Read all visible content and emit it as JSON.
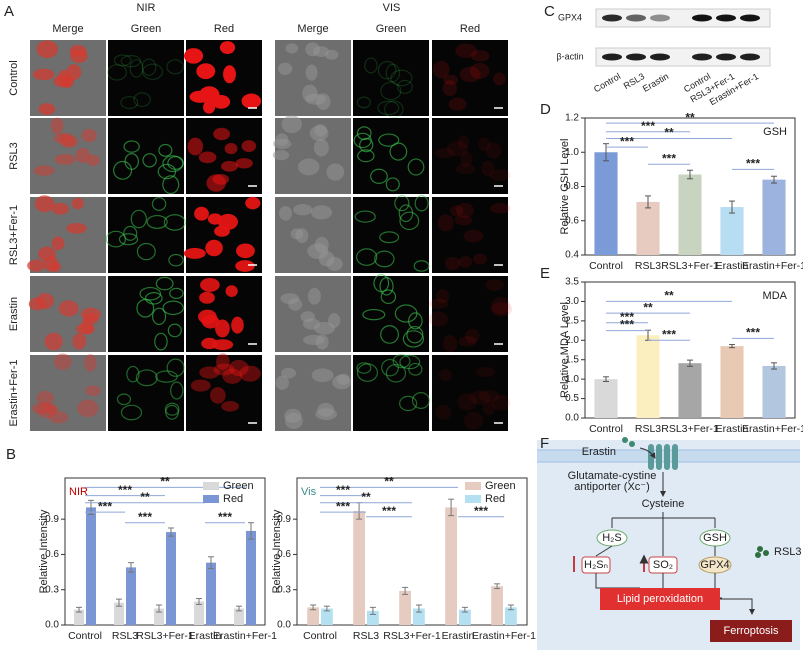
{
  "panel_a": {
    "label": "A",
    "groups": [
      "NIR",
      "VIS"
    ],
    "columns": [
      "Merge",
      "Green",
      "Red",
      "Merge",
      "Green",
      "Red"
    ],
    "rows": [
      "Control",
      "RSL3",
      "RSL3+Fer-1",
      "Erastin",
      "Erastin+Fer-1"
    ]
  },
  "panel_c": {
    "label": "C",
    "proteins": [
      "GPX4",
      "β-actin"
    ],
    "lanes": [
      "Control",
      "RSL3",
      "Erastin",
      "Control",
      "RSL3+Fer-1",
      "Erastin+Fer-1"
    ]
  },
  "panel_f": {
    "label": "F",
    "erastin": "Erastin",
    "antiporter": [
      "Glutamate-cystine",
      "antiporter (Xc⁻)"
    ],
    "cysteine": "Cysteine",
    "h2s": "H₂S",
    "gsh": "GSH",
    "h2sn": "H₂Sₙ",
    "so2": "SO₂",
    "gpx4": "GPX4",
    "rsl3": "RSL3",
    "lipid": "Lipid peroxidation",
    "ferroptosis": "Ferroptosis"
  },
  "chart_data": [
    {
      "type": "bar",
      "panel": "B",
      "annotation": "NIR",
      "annotation_color": "#c00000",
      "ylabel": "Relative Intensity",
      "categories": [
        "Control",
        "RSL3",
        "RSL3+Fer-1",
        "Erastin",
        "Erastin+Fer-1"
      ],
      "series": [
        {
          "name": "Green",
          "color": "#d9d9d9",
          "values": [
            0.13,
            0.19,
            0.14,
            0.2,
            0.14
          ],
          "errors": [
            0.02,
            0.03,
            0.03,
            0.025,
            0.02
          ]
        },
        {
          "name": "Red",
          "color": "#7b96d4",
          "values": [
            1.0,
            0.49,
            0.79,
            0.53,
            0.8
          ],
          "errors": [
            0.06,
            0.04,
            0.035,
            0.05,
            0.07
          ]
        }
      ],
      "ylim": [
        0,
        1.25
      ],
      "yticks": [
        {
          "value": 0,
          "label": "0.0"
        },
        0.3,
        0.6,
        0.9
      ],
      "legend": "upper right",
      "significance": [
        "**",
        "***",
        "**",
        "***",
        "***",
        "***"
      ]
    },
    {
      "type": "bar",
      "annotation": "Vis",
      "annotation_color": "#3a8a8a",
      "ylabel": "Relative Intensity",
      "categories": [
        "Control",
        "RSL3",
        "RSL3+Fer-1",
        "Erastin",
        "Erastin+Fer-1"
      ],
      "series": [
        {
          "name": "Green",
          "color": "#e6cbc0",
          "values": [
            0.15,
            0.97,
            0.29,
            1.0,
            0.33
          ],
          "errors": [
            0.02,
            0.07,
            0.03,
            0.07,
            0.02
          ]
        },
        {
          "name": "Red",
          "color": "#b4e0f2",
          "values": [
            0.14,
            0.12,
            0.14,
            0.13,
            0.15
          ],
          "errors": [
            0.02,
            0.03,
            0.03,
            0.02,
            0.02
          ]
        }
      ],
      "ylim": [
        0,
        1.25
      ],
      "yticks": [
        {
          "value": 0,
          "label": "0.0"
        },
        0.3,
        0.6,
        0.9
      ],
      "legend": "upper right",
      "significance": [
        "**",
        "***",
        "**",
        "***",
        "***",
        "***"
      ]
    },
    {
      "type": "bar",
      "panel": "D",
      "annotation": "GSH",
      "annotation_color": "#222222",
      "ylabel": "Relative GSH Level",
      "categories": [
        "Control",
        "RSL3",
        "RSL3+Fer-1",
        "Erastin",
        "Erastin+Fer-1"
      ],
      "values": [
        1.0,
        0.71,
        0.87,
        0.68,
        0.84
      ],
      "errors": [
        0.05,
        0.035,
        0.025,
        0.035,
        0.02
      ],
      "colors": [
        "#7a9bd8",
        "#e8cbc0",
        "#c9d4c0",
        "#b6ddf2",
        "#9cb3e0"
      ],
      "ylim": [
        0.4,
        1.2
      ],
      "yticks": [
        0.4,
        0.6,
        0.8,
        {
          "value": 1,
          "label": "1.0"
        },
        1.2
      ],
      "significance": [
        "**",
        "***",
        "**",
        "***",
        "***",
        "***"
      ]
    },
    {
      "type": "bar",
      "panel": "E",
      "annotation": "MDA",
      "annotation_color": "#222222",
      "ylabel": "Relative MDA Level",
      "categories": [
        "Control",
        "RSL3",
        "RSL3+Fer-1",
        "Erastin",
        "Erastin+Fer-1"
      ],
      "values": [
        1.0,
        2.13,
        1.41,
        1.85,
        1.34
      ],
      "errors": [
        0.06,
        0.13,
        0.08,
        0.04,
        0.08
      ],
      "colors": [
        "#d9d9d9",
        "#fbefbf",
        "#a6a6a6",
        "#e8c9b4",
        "#b3c6e0"
      ],
      "ylim": [
        0,
        3.5
      ],
      "yticks": [
        {
          "value": 0,
          "label": "0.0"
        },
        0.5,
        {
          "value": 1,
          "label": "1.0"
        },
        1.5,
        {
          "value": 2,
          "label": "2.0"
        },
        2.5,
        {
          "value": 3,
          "label": "3.0"
        },
        3.5
      ],
      "significance": [
        "**",
        "**",
        "***",
        "***",
        "***",
        "***"
      ]
    }
  ]
}
